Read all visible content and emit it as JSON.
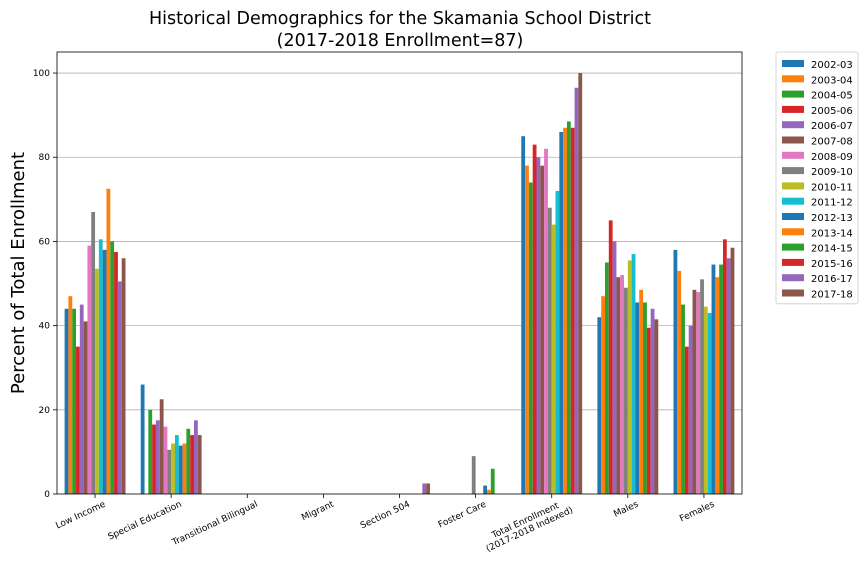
{
  "chart_data": {
    "type": "bar",
    "title_line1": "Historical Demographics for the Skamania School District",
    "title_line2": "(2017-2018 Enrollment=87)",
    "xlabel": "",
    "ylabel": "Percent of Total Enrollment",
    "ylim": [
      0,
      105
    ],
    "yticks": [
      0,
      20,
      40,
      60,
      80,
      100
    ],
    "grid": "y",
    "legend_placement": "outside-top-right",
    "categories": [
      "Low Income",
      "Special Education",
      "Transitional Bilingual",
      "Migrant",
      "Section 504",
      "Foster Care",
      "Total Enrollment\n(2017-2018 Indexed)",
      "Males",
      "Females"
    ],
    "series": [
      {
        "name": "2002-03",
        "color": "#1f77b4",
        "values": [
          44,
          26,
          0,
          0,
          0,
          0,
          85,
          42,
          58
        ]
      },
      {
        "name": "2003-04",
        "color": "#ff7f0e",
        "values": [
          47,
          0,
          0,
          0,
          0,
          0,
          78,
          47,
          53
        ]
      },
      {
        "name": "2004-05",
        "color": "#2ca02c",
        "values": [
          44,
          20,
          0,
          0,
          0,
          0,
          74,
          55,
          45
        ]
      },
      {
        "name": "2005-06",
        "color": "#d62728",
        "values": [
          35,
          16.5,
          0,
          0,
          0,
          0,
          83,
          65,
          35
        ]
      },
      {
        "name": "2006-07",
        "color": "#9467bd",
        "values": [
          45,
          17.5,
          0,
          0,
          0,
          0,
          80,
          60,
          40
        ]
      },
      {
        "name": "2007-08",
        "color": "#8c564b",
        "values": [
          41,
          22.5,
          0,
          0,
          0,
          0,
          78,
          51.5,
          48.5
        ]
      },
      {
        "name": "2008-09",
        "color": "#e377c2",
        "values": [
          59,
          16,
          0,
          0,
          0,
          0,
          82,
          52,
          48
        ]
      },
      {
        "name": "2009-10",
        "color": "#7f7f7f",
        "values": [
          67,
          10.5,
          0,
          0,
          0,
          9,
          68,
          49,
          51
        ]
      },
      {
        "name": "2010-11",
        "color": "#bcbd22",
        "values": [
          53.5,
          12,
          0,
          0,
          0,
          0,
          64,
          55.5,
          44.5
        ]
      },
      {
        "name": "2011-12",
        "color": "#17becf",
        "values": [
          60.5,
          14,
          0,
          0,
          0,
          0,
          72,
          57,
          43
        ]
      },
      {
        "name": "2012-13",
        "color": "#1f77b4",
        "values": [
          58,
          11.5,
          0,
          0,
          0,
          2,
          86,
          45.5,
          54.5
        ]
      },
      {
        "name": "2013-14",
        "color": "#ff7f0e",
        "values": [
          72.5,
          12,
          0,
          0,
          0,
          1,
          87,
          48.5,
          51.5
        ]
      },
      {
        "name": "2014-15",
        "color": "#2ca02c",
        "values": [
          60,
          15.5,
          0,
          0,
          0,
          6,
          88.5,
          45.5,
          54.5
        ]
      },
      {
        "name": "2015-16",
        "color": "#d62728",
        "values": [
          57.5,
          14,
          0,
          0,
          0,
          0,
          87,
          39.5,
          60.5
        ]
      },
      {
        "name": "2016-17",
        "color": "#9467bd",
        "values": [
          50.5,
          17.5,
          0,
          0,
          2.5,
          0,
          96.5,
          44,
          56
        ]
      },
      {
        "name": "2017-18",
        "color": "#8c564b",
        "values": [
          56,
          14,
          0,
          0,
          2.5,
          0,
          100,
          41.5,
          58.5
        ]
      }
    ]
  }
}
